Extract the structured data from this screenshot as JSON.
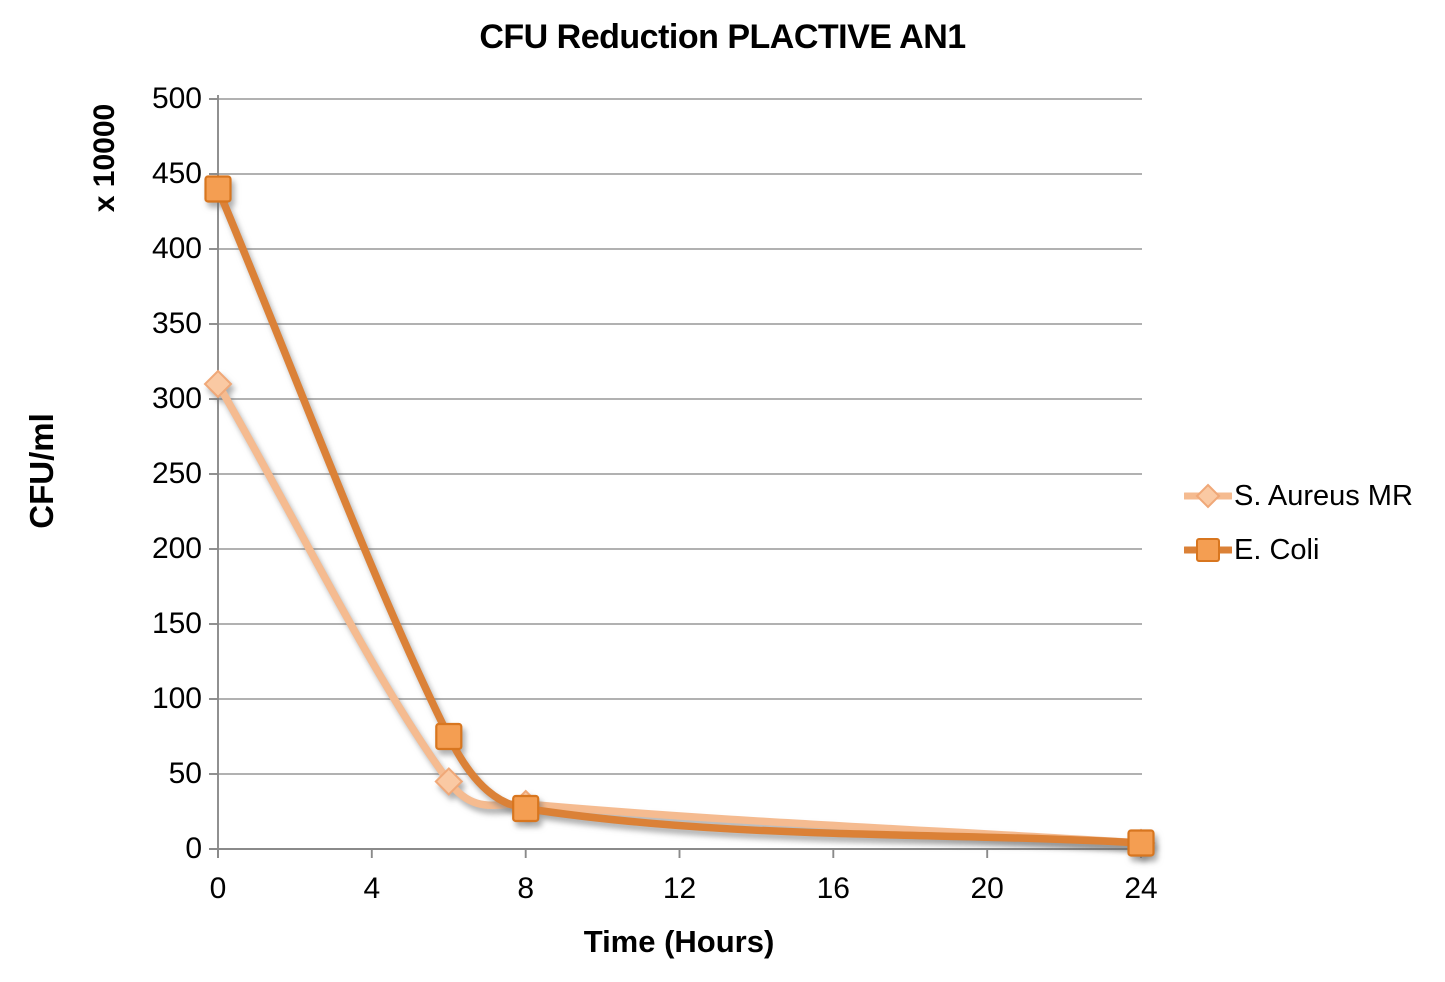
{
  "chart_data": {
    "type": "line",
    "title": "CFU Reduction PLACTIVE AN1",
    "xlabel": "Time (Hours)",
    "ylabel": "CFU/ml",
    "y_unit_label": "x 10000",
    "x": [
      0,
      6,
      8,
      24
    ],
    "xticks": [
      0,
      4,
      8,
      12,
      16,
      20,
      24
    ],
    "yticks": [
      0,
      50,
      100,
      150,
      200,
      250,
      300,
      350,
      400,
      450,
      500
    ],
    "xlim": [
      0,
      24
    ],
    "ylim": [
      0,
      500
    ],
    "grid": "horizontal-major",
    "legend_position": "right",
    "series": [
      {
        "name": "S. Aureus MR",
        "marker": "diamond",
        "values": [
          310,
          45,
          30,
          4
        ],
        "line_color": "#F5BB90",
        "marker_fill": "#FAC9A3",
        "marker_stroke": "#F0A878"
      },
      {
        "name": "E. Coli",
        "marker": "square",
        "values": [
          440,
          75,
          27,
          4
        ],
        "line_color": "#DB8137",
        "marker_fill": "#F49E52",
        "marker_stroke": "#D8761F"
      }
    ],
    "colors": {
      "gridline": "#A6A6A6",
      "axis": "#8A8A8A",
      "text": "#000000",
      "background": "#FFFFFF"
    }
  }
}
